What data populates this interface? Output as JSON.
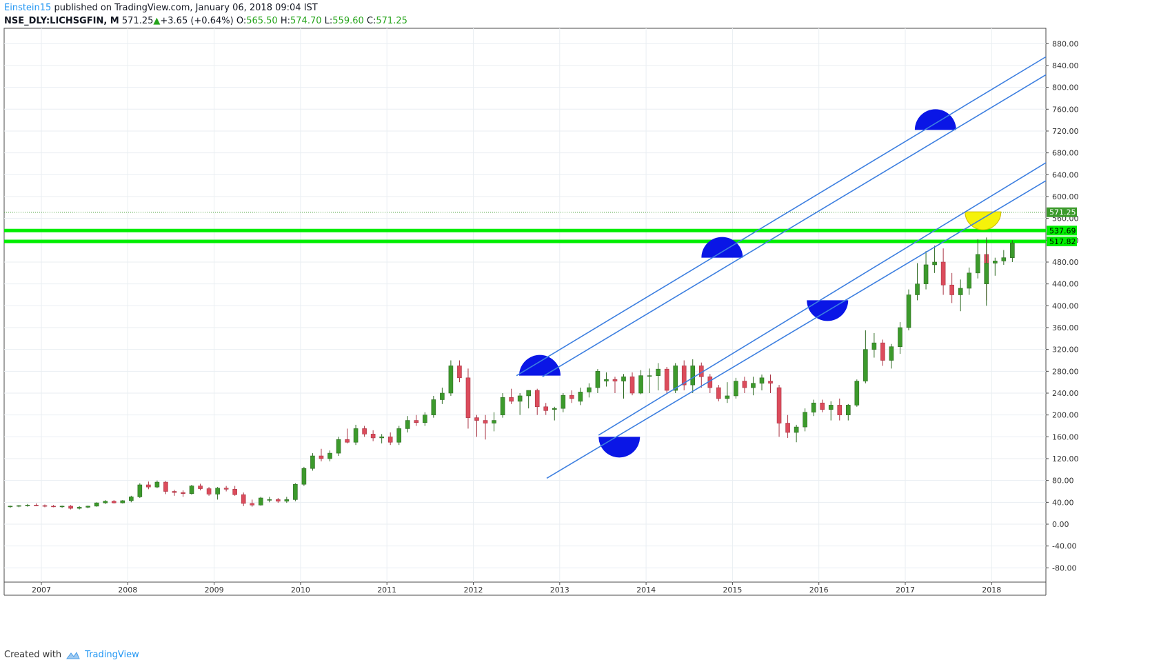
{
  "header": {
    "author": "Einstein15",
    "published": "published on TradingView.com, January 06, 2018 09:04 IST",
    "symbol": "NSE_DLY:LICHSGFIN, M",
    "last": "571.25",
    "change": "+3.65 (+0.64%)",
    "open_label": "O:",
    "open": "565.50",
    "high_label": "H:",
    "high": "574.70",
    "low_label": "L:",
    "low": "559.60",
    "close_label": "C:",
    "close": "571.25"
  },
  "footer": {
    "created_with": "Created with",
    "brand": "TradingView"
  },
  "colors": {
    "up": "#3c9a2c",
    "down": "#dc4c5c",
    "channel": "#3d7fe0",
    "support": "#00ee00",
    "grid": "#e9eef2",
    "marker_blue": "#0a16e6",
    "marker_yellow": "#f5f20a"
  },
  "chart_data": {
    "type": "candlestick",
    "x_ticks": [
      "2007",
      "2008",
      "2009",
      "2010",
      "2011",
      "2012",
      "2013",
      "2014",
      "2015",
      "2016",
      "2017",
      "2018"
    ],
    "y_ticks": [
      "880.00",
      "840.00",
      "800.00",
      "760.00",
      "720.00",
      "680.00",
      "640.00",
      "600.00",
      "560.00",
      "520.00",
      "480.00",
      "440.00",
      "400.00",
      "360.00",
      "320.00",
      "280.00",
      "240.00",
      "200.00",
      "160.00",
      "120.00",
      "80.00",
      "40.00",
      "0.00",
      "-40.00",
      "-80.00"
    ],
    "ylim": [
      -96,
      910
    ],
    "xlim": [
      2006.55,
      2018.65
    ],
    "price_labels": [
      {
        "value": 571.25,
        "text": "571.25",
        "kind": "last"
      },
      {
        "value": 537.69,
        "text": "537.69",
        "kind": "support"
      },
      {
        "value": 517.82,
        "text": "517.82",
        "kind": "support"
      }
    ],
    "support_levels": [
      537.69,
      517.82
    ],
    "last_price": 571.25,
    "channel_lines": [
      {
        "x1": 2012.5,
        "y1": 272,
        "x2": 2018.65,
        "y2": 858
      },
      {
        "x1": 2012.8,
        "y1": 270,
        "x2": 2018.65,
        "y2": 825
      },
      {
        "x1": 2013.45,
        "y1": 163,
        "x2": 2018.65,
        "y2": 664
      },
      {
        "x1": 2012.85,
        "y1": 84,
        "x2": 2018.65,
        "y2": 631
      }
    ],
    "markers": [
      {
        "x": 2012.77,
        "y": 272,
        "color": "blue",
        "dir": "up"
      },
      {
        "x": 2013.69,
        "y": 160,
        "color": "blue",
        "dir": "down"
      },
      {
        "x": 2014.88,
        "y": 488,
        "color": "blue",
        "dir": "up"
      },
      {
        "x": 2016.1,
        "y": 410,
        "color": "blue",
        "dir": "down"
      },
      {
        "x": 2017.35,
        "y": 722,
        "color": "blue",
        "dir": "up"
      },
      {
        "x": 2017.9,
        "y": 572,
        "color": "yellow",
        "dir": "down"
      }
    ],
    "candles": [
      [
        2006.6,
        32,
        34,
        30,
        33
      ],
      [
        2006.7,
        33,
        35,
        31,
        34
      ],
      [
        2006.8,
        34,
        37,
        32,
        35
      ],
      [
        2006.9,
        35,
        38,
        33,
        34
      ],
      [
        2007.0,
        34,
        36,
        31,
        33
      ],
      [
        2007.1,
        33,
        35,
        31,
        32
      ],
      [
        2007.2,
        32,
        34,
        30,
        33
      ],
      [
        2007.3,
        33,
        35,
        27,
        29
      ],
      [
        2007.4,
        29,
        33,
        27,
        31
      ],
      [
        2007.5,
        31,
        34,
        29,
        33
      ],
      [
        2007.6,
        33,
        40,
        32,
        39
      ],
      [
        2007.7,
        39,
        44,
        37,
        42
      ],
      [
        2007.8,
        42,
        44,
        38,
        39
      ],
      [
        2007.9,
        39,
        44,
        38,
        43
      ],
      [
        2008.0,
        43,
        52,
        40,
        50
      ],
      [
        2008.1,
        50,
        75,
        48,
        72
      ],
      [
        2008.2,
        72,
        78,
        64,
        68
      ],
      [
        2008.3,
        68,
        80,
        66,
        77
      ],
      [
        2008.4,
        77,
        79,
        55,
        60
      ],
      [
        2008.5,
        60,
        63,
        52,
        58
      ],
      [
        2008.6,
        58,
        62,
        50,
        56
      ],
      [
        2008.7,
        56,
        72,
        54,
        70
      ],
      [
        2008.8,
        70,
        74,
        62,
        65
      ],
      [
        2008.9,
        65,
        68,
        52,
        55
      ],
      [
        2009.0,
        55,
        68,
        45,
        66
      ],
      [
        2009.1,
        66,
        70,
        60,
        64
      ],
      [
        2009.2,
        64,
        70,
        52,
        54
      ],
      [
        2009.3,
        54,
        58,
        33,
        38
      ],
      [
        2009.4,
        38,
        45,
        32,
        35
      ],
      [
        2009.5,
        35,
        50,
        34,
        48
      ],
      [
        2009.6,
        44,
        50,
        40,
        45
      ],
      [
        2009.7,
        45,
        48,
        39,
        42
      ],
      [
        2009.8,
        42,
        50,
        39,
        45
      ],
      [
        2009.9,
        45,
        75,
        42,
        73
      ],
      [
        2010.0,
        73,
        105,
        70,
        102
      ],
      [
        2010.1,
        102,
        130,
        98,
        125
      ],
      [
        2010.2,
        125,
        138,
        115,
        120
      ],
      [
        2010.3,
        120,
        135,
        115,
        130
      ],
      [
        2010.4,
        130,
        160,
        125,
        155
      ],
      [
        2010.5,
        155,
        175,
        148,
        150
      ],
      [
        2010.6,
        150,
        182,
        145,
        175
      ],
      [
        2010.7,
        175,
        180,
        160,
        165
      ],
      [
        2010.8,
        165,
        172,
        152,
        158
      ],
      [
        2010.9,
        158,
        165,
        148,
        160
      ],
      [
        2011.0,
        160,
        168,
        145,
        150
      ],
      [
        2011.1,
        150,
        180,
        145,
        175
      ],
      [
        2011.2,
        175,
        198,
        168,
        190
      ],
      [
        2011.3,
        190,
        200,
        180,
        186
      ],
      [
        2011.4,
        186,
        205,
        180,
        200
      ],
      [
        2011.5,
        200,
        235,
        195,
        228
      ],
      [
        2011.6,
        228,
        250,
        220,
        240
      ],
      [
        2011.7,
        240,
        300,
        235,
        290
      ],
      [
        2011.8,
        290,
        300,
        260,
        268
      ],
      [
        2011.9,
        268,
        285,
        175,
        195
      ],
      [
        2012.0,
        195,
        200,
        160,
        190
      ],
      [
        2012.1,
        190,
        200,
        155,
        185
      ],
      [
        2012.2,
        185,
        205,
        170,
        190
      ],
      [
        2012.3,
        200,
        240,
        195,
        232
      ],
      [
        2012.4,
        232,
        248,
        220,
        225
      ],
      [
        2012.5,
        225,
        240,
        200,
        235
      ],
      [
        2012.6,
        235,
        245,
        212,
        245
      ],
      [
        2012.7,
        245,
        248,
        200,
        215
      ],
      [
        2012.8,
        215,
        222,
        200,
        208
      ],
      [
        2012.9,
        210,
        215,
        190,
        212
      ],
      [
        2013.0,
        212,
        240,
        205,
        236
      ],
      [
        2013.1,
        236,
        245,
        222,
        230
      ],
      [
        2013.2,
        225,
        250,
        218,
        242
      ],
      [
        2013.3,
        242,
        258,
        232,
        250
      ],
      [
        2013.4,
        250,
        284,
        240,
        280
      ],
      [
        2013.5,
        262,
        278,
        252,
        265
      ],
      [
        2013.6,
        265,
        270,
        240,
        262
      ],
      [
        2013.7,
        262,
        275,
        230,
        270
      ],
      [
        2013.8,
        270,
        278,
        236,
        240
      ],
      [
        2013.9,
        240,
        282,
        238,
        272
      ],
      [
        2014.0,
        272,
        285,
        240,
        272
      ],
      [
        2014.1,
        272,
        295,
        245,
        284
      ],
      [
        2014.2,
        284,
        288,
        240,
        245
      ],
      [
        2014.3,
        245,
        295,
        240,
        290
      ],
      [
        2014.4,
        290,
        300,
        245,
        255
      ],
      [
        2014.5,
        255,
        302,
        240,
        290
      ],
      [
        2014.6,
        290,
        296,
        250,
        270
      ],
      [
        2014.7,
        270,
        275,
        240,
        250
      ],
      [
        2014.8,
        250,
        255,
        225,
        230
      ],
      [
        2014.9,
        230,
        260,
        222,
        235
      ],
      [
        2015.0,
        235,
        268,
        230,
        262
      ],
      [
        2015.1,
        262,
        270,
        240,
        250
      ],
      [
        2015.2,
        250,
        270,
        236,
        258
      ],
      [
        2015.3,
        258,
        274,
        245,
        268
      ],
      [
        2015.4,
        262,
        274,
        240,
        258
      ],
      [
        2015.5,
        250,
        255,
        160,
        185
      ],
      [
        2015.6,
        185,
        200,
        158,
        168
      ],
      [
        2015.7,
        168,
        182,
        150,
        178
      ],
      [
        2015.8,
        178,
        212,
        170,
        205
      ],
      [
        2015.9,
        205,
        228,
        198,
        222
      ],
      [
        2016.0,
        222,
        228,
        205,
        210
      ],
      [
        2016.1,
        210,
        225,
        190,
        218
      ],
      [
        2016.2,
        218,
        230,
        190,
        200
      ],
      [
        2016.3,
        200,
        220,
        190,
        218
      ],
      [
        2016.4,
        218,
        265,
        215,
        262
      ],
      [
        2016.5,
        262,
        355,
        258,
        320
      ],
      [
        2016.6,
        320,
        350,
        305,
        332
      ],
      [
        2016.7,
        332,
        338,
        290,
        300
      ],
      [
        2016.8,
        300,
        330,
        285,
        325
      ],
      [
        2016.9,
        325,
        370,
        312,
        360
      ],
      [
        2017.0,
        360,
        430,
        355,
        420
      ],
      [
        2017.1,
        420,
        478,
        410,
        440
      ],
      [
        2017.2,
        440,
        500,
        430,
        475
      ],
      [
        2017.3,
        475,
        510,
        460,
        480
      ],
      [
        2017.4,
        480,
        505,
        420,
        438
      ],
      [
        2017.5,
        438,
        460,
        405,
        420
      ],
      [
        2017.6,
        420,
        448,
        390,
        432
      ],
      [
        2017.7,
        432,
        470,
        420,
        460
      ],
      [
        2017.8,
        460,
        522,
        450,
        494
      ],
      [
        2017.9,
        494,
        520,
        410,
        440
      ],
      [
        2017.9,
        440,
        525,
        400,
        478
      ],
      [
        2018.0,
        478,
        488,
        455,
        482
      ],
      [
        2018.1,
        482,
        502,
        475,
        488
      ],
      [
        2018.2,
        488,
        520,
        480,
        515
      ]
    ]
  }
}
